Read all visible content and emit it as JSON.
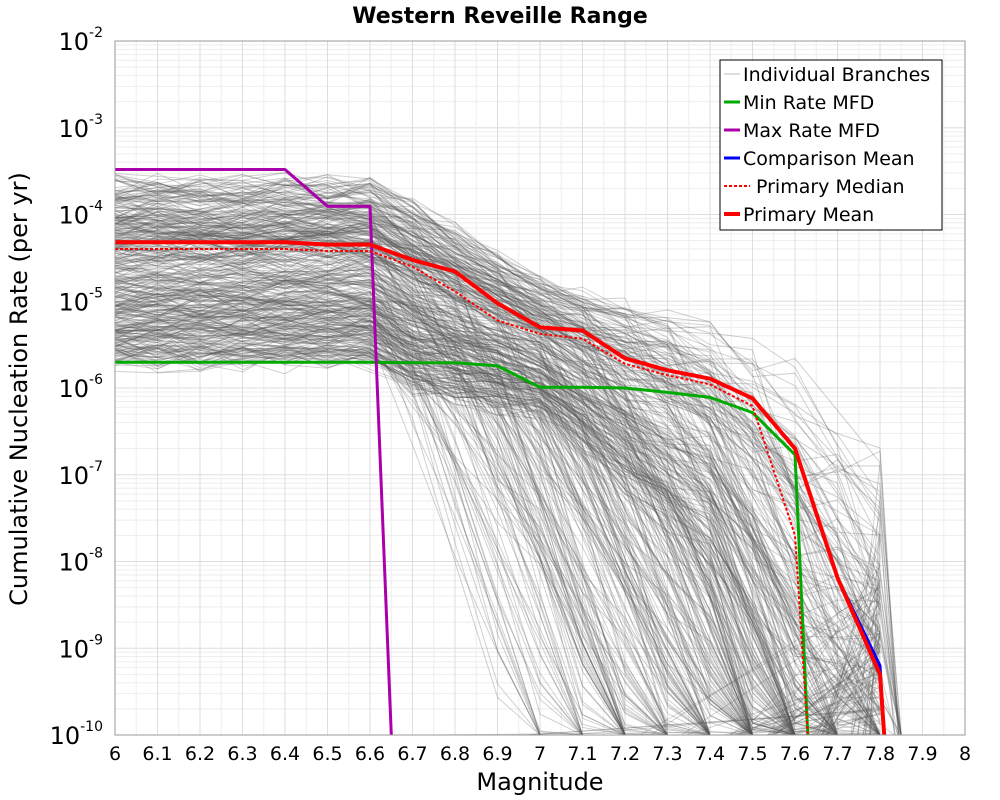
{
  "chart_data": {
    "type": "line",
    "title": "Western Reveille Range",
    "xlabel": "Magnitude",
    "ylabel": "Cumulative Nucleation Rate (per yr)",
    "xlim": [
      6,
      8
    ],
    "ylim": [
      1e-10,
      0.01
    ],
    "yscale": "log",
    "grid": true,
    "legend_position": "top-right",
    "x_ticks": [
      "6",
      "6.1",
      "6.2",
      "6.3",
      "6.4",
      "6.5",
      "6.6",
      "6.7",
      "6.8",
      "6.9",
      "7",
      "7.1",
      "7.2",
      "7.3",
      "7.4",
      "7.5",
      "7.6",
      "7.7",
      "7.8",
      "7.9",
      "8"
    ],
    "y_ticks": [
      {
        "base": "10",
        "exp": "-2"
      },
      {
        "base": "10",
        "exp": "-3"
      },
      {
        "base": "10",
        "exp": "-4"
      },
      {
        "base": "10",
        "exp": "-5"
      },
      {
        "base": "10",
        "exp": "-6"
      },
      {
        "base": "10",
        "exp": "-7"
      },
      {
        "base": "10",
        "exp": "-8"
      },
      {
        "base": "10",
        "exp": "-9"
      },
      {
        "base": "10",
        "exp": "-10"
      }
    ],
    "series": [
      {
        "name": "Individual Branches",
        "color": "#555555",
        "style": "thin-gray-bundle",
        "note_count": 400,
        "envelope_upper": {
          "x": [
            6,
            6.6,
            6.7,
            7.0,
            7.4,
            7.6,
            7.8,
            7.81
          ],
          "y": [
            0.00022,
            0.00022,
            0.00012,
            1.6e-05,
            4.5e-06,
            1.8e-06,
            5e-07,
            2.5e-07
          ]
        },
        "envelope_lower": {
          "x": [
            6,
            6.6,
            6.7,
            7.0,
            7.4,
            7.6,
            7.8
          ],
          "y": [
            2e-06,
            2e-06,
            1e-06,
            5e-07,
            1e-08,
            1e-10,
            1e-10
          ]
        }
      },
      {
        "name": "Min Rate MFD",
        "color": "#00aa00",
        "x": [
          6.0,
          6.1,
          6.2,
          6.3,
          6.4,
          6.5,
          6.6,
          6.7,
          6.8,
          6.9,
          7.0,
          7.1,
          7.2,
          7.3,
          7.4,
          7.5,
          7.6,
          7.63
        ],
        "y": [
          1.98e-06,
          1.98e-06,
          1.98e-06,
          1.98e-06,
          1.98e-06,
          1.98e-06,
          1.98e-06,
          1.95e-06,
          1.95e-06,
          1.8e-06,
          1.02e-06,
          1.02e-06,
          1e-06,
          8.9e-07,
          7.8e-07,
          5.2e-07,
          1.7e-07,
          1e-10
        ]
      },
      {
        "name": "Max Rate MFD",
        "color": "#aa00aa",
        "x": [
          6.0,
          6.1,
          6.2,
          6.3,
          6.4,
          6.5,
          6.6,
          6.65
        ],
        "y": [
          0.00033,
          0.00033,
          0.00033,
          0.00033,
          0.00033,
          0.000124,
          0.000124,
          1e-10
        ]
      },
      {
        "name": "Comparison Mean",
        "color": "#0000ff",
        "x": [
          6.0,
          6.1,
          6.2,
          6.3,
          6.4,
          6.5,
          6.6,
          6.7,
          6.8,
          6.9,
          7.0,
          7.1,
          7.2,
          7.3,
          7.4,
          7.5,
          7.6,
          7.7,
          7.8,
          7.81
        ],
        "y": [
          4.8e-05,
          4.8e-05,
          4.8e-05,
          4.8e-05,
          4.8e-05,
          4.5e-05,
          4.5e-05,
          3e-05,
          2.2e-05,
          9.5e-06,
          5e-06,
          4.6e-06,
          2.2e-06,
          1.6e-06,
          1.28e-06,
          7.6e-07,
          2e-07,
          6.5e-09,
          6.3e-10,
          1e-10
        ]
      },
      {
        "name": "Primary Median",
        "color": "#ff0000",
        "dashed": true,
        "x": [
          6.0,
          6.1,
          6.2,
          6.3,
          6.4,
          6.5,
          6.6,
          6.7,
          6.8,
          6.9,
          7.0,
          7.1,
          7.2,
          7.3,
          7.4,
          7.5,
          7.6,
          7.63
        ],
        "y": [
          4e-05,
          4e-05,
          4e-05,
          4e-05,
          4e-05,
          3.8e-05,
          3.8e-05,
          2.5e-05,
          1.3e-05,
          6e-06,
          4.2e-06,
          3.7e-06,
          1.9e-06,
          1.4e-06,
          1.1e-06,
          6.2e-07,
          2e-08,
          1e-10
        ]
      },
      {
        "name": "Primary Mean",
        "color": "#ff0000",
        "x": [
          6.0,
          6.1,
          6.2,
          6.3,
          6.4,
          6.5,
          6.6,
          6.7,
          6.8,
          6.9,
          7.0,
          7.1,
          7.2,
          7.3,
          7.4,
          7.5,
          7.6,
          7.7,
          7.8,
          7.81
        ],
        "y": [
          4.8e-05,
          4.8e-05,
          4.8e-05,
          4.8e-05,
          4.8e-05,
          4.5e-05,
          4.5e-05,
          3e-05,
          2.2e-05,
          9.5e-06,
          5e-06,
          4.6e-06,
          2.2e-06,
          1.6e-06,
          1.28e-06,
          7.6e-07,
          2e-07,
          6.5e-09,
          5e-10,
          1e-10
        ]
      }
    ]
  }
}
